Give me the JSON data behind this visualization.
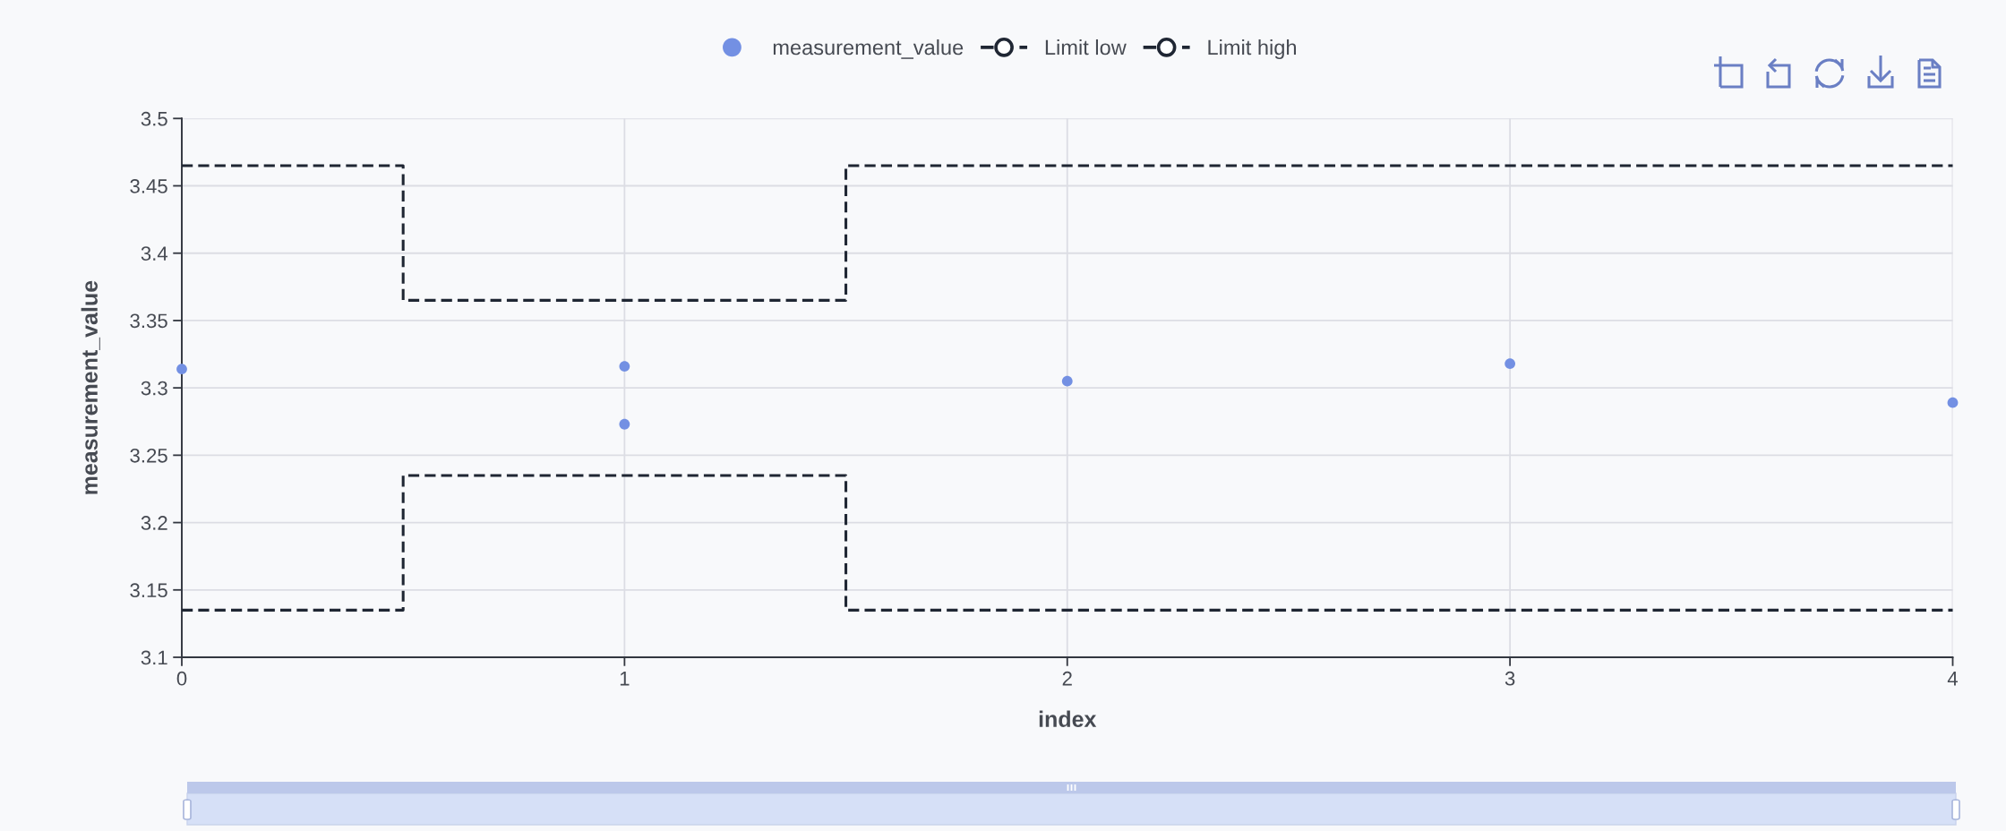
{
  "chart_data": {
    "type": "scatter",
    "xlabel": "index",
    "ylabel": "measurement_value",
    "xlim": [
      0,
      4
    ],
    "xticks": [
      0,
      1,
      2,
      3,
      4
    ],
    "ylim": [
      3.1,
      3.5
    ],
    "yticks": [
      3.1,
      3.15,
      3.2,
      3.25,
      3.3,
      3.35,
      3.4,
      3.45,
      3.5
    ],
    "grid": true,
    "legend": "top",
    "series": [
      {
        "name": "measurement_value",
        "color": "#7390e3",
        "marker": "circle",
        "x": [
          0,
          1,
          1,
          2,
          3,
          4
        ],
        "values": [
          3.314,
          3.316,
          3.273,
          3.305,
          3.318,
          3.289
        ]
      },
      {
        "name": "Limit low",
        "type": "step",
        "color": "#1f2633",
        "line_style": "dashed",
        "x": [
          0,
          1,
          2,
          3,
          4
        ],
        "values": [
          3.135,
          3.235,
          3.135,
          3.135,
          3.135
        ]
      },
      {
        "name": "Limit high",
        "type": "step",
        "color": "#1f2633",
        "line_style": "dashed",
        "x": [
          0,
          1,
          2,
          3,
          4
        ],
        "values": [
          3.465,
          3.365,
          3.465,
          3.465,
          3.465
        ]
      }
    ]
  }
}
